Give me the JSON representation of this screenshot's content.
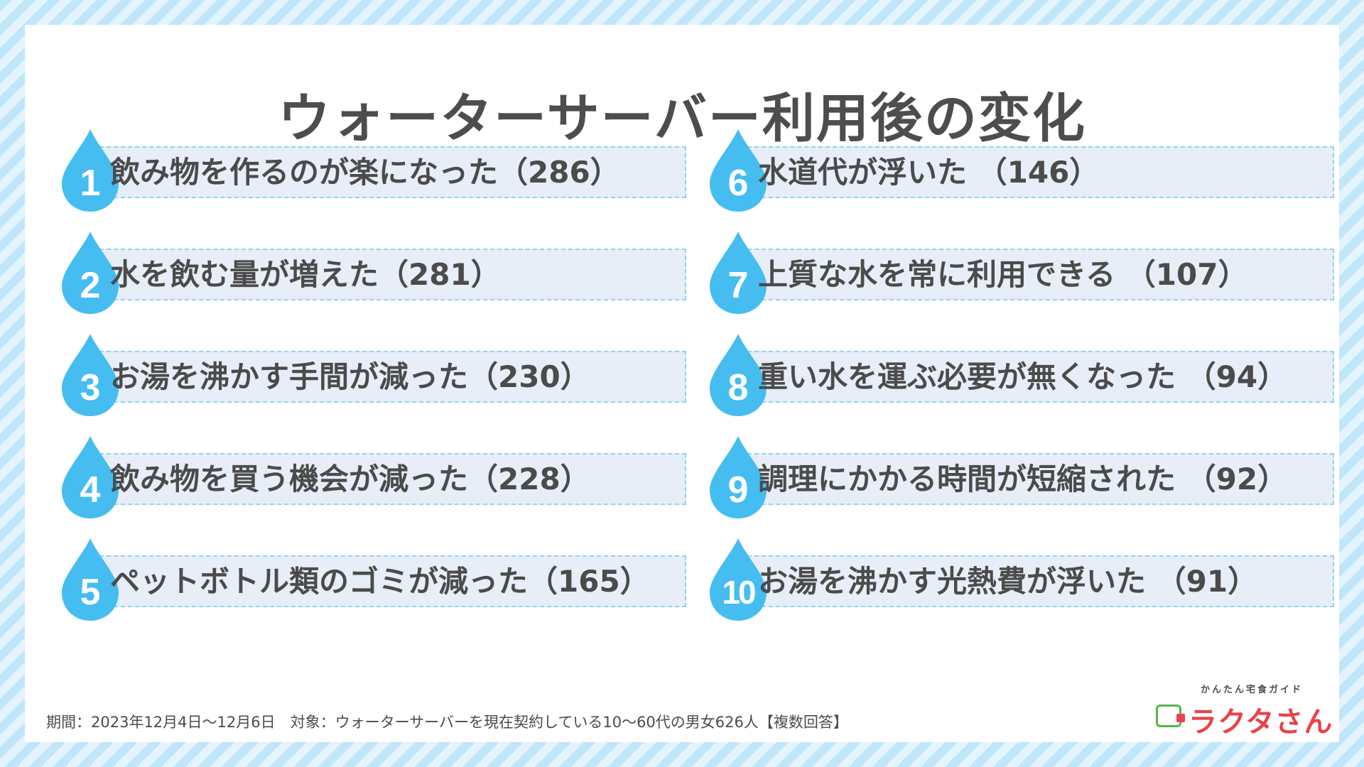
{
  "title": "ウォーターサーバー利用後の変化",
  "items": [
    {
      "rank": "1",
      "text": "飲み物を作るのが楽になった（286）"
    },
    {
      "rank": "2",
      "text": "水を飲む量が増えた（281）"
    },
    {
      "rank": "3",
      "text": "お湯を沸かす手間が減った（230）"
    },
    {
      "rank": "4",
      "text": "飲み物を買う機会が減った（228）"
    },
    {
      "rank": "5",
      "text": "ペットボトル類のゴミが減った（165）"
    },
    {
      "rank": "6",
      "text": "水道代が浮いた （146）"
    },
    {
      "rank": "7",
      "text": "上質な水を常に利用できる （107）"
    },
    {
      "rank": "8",
      "text": "重い水を運ぶ必要が無くなった （94）"
    },
    {
      "rank": "9",
      "text": "調理にかかる時間が短縮された （92）"
    },
    {
      "rank": "10",
      "text": "お湯を沸かす光熱費が浮いた （91）"
    }
  ],
  "footer": "期間：2023年12月4日〜12月6日　対象：ウォーターサーバーを現在契約している10〜60代の男女626人【複数回答】",
  "logo": {
    "subtitle": "かんたん宅食ガイド",
    "name": "ラクタさん"
  },
  "colors": {
    "drop": "#45bdf0",
    "bar": "#e7eef8",
    "bar_border": "#8fd3f2",
    "text": "#4b4b4b",
    "brand": "#e8434a"
  },
  "icons": {
    "rank_badge": "water-drop-icon",
    "logo": "lunchbox-icon"
  }
}
